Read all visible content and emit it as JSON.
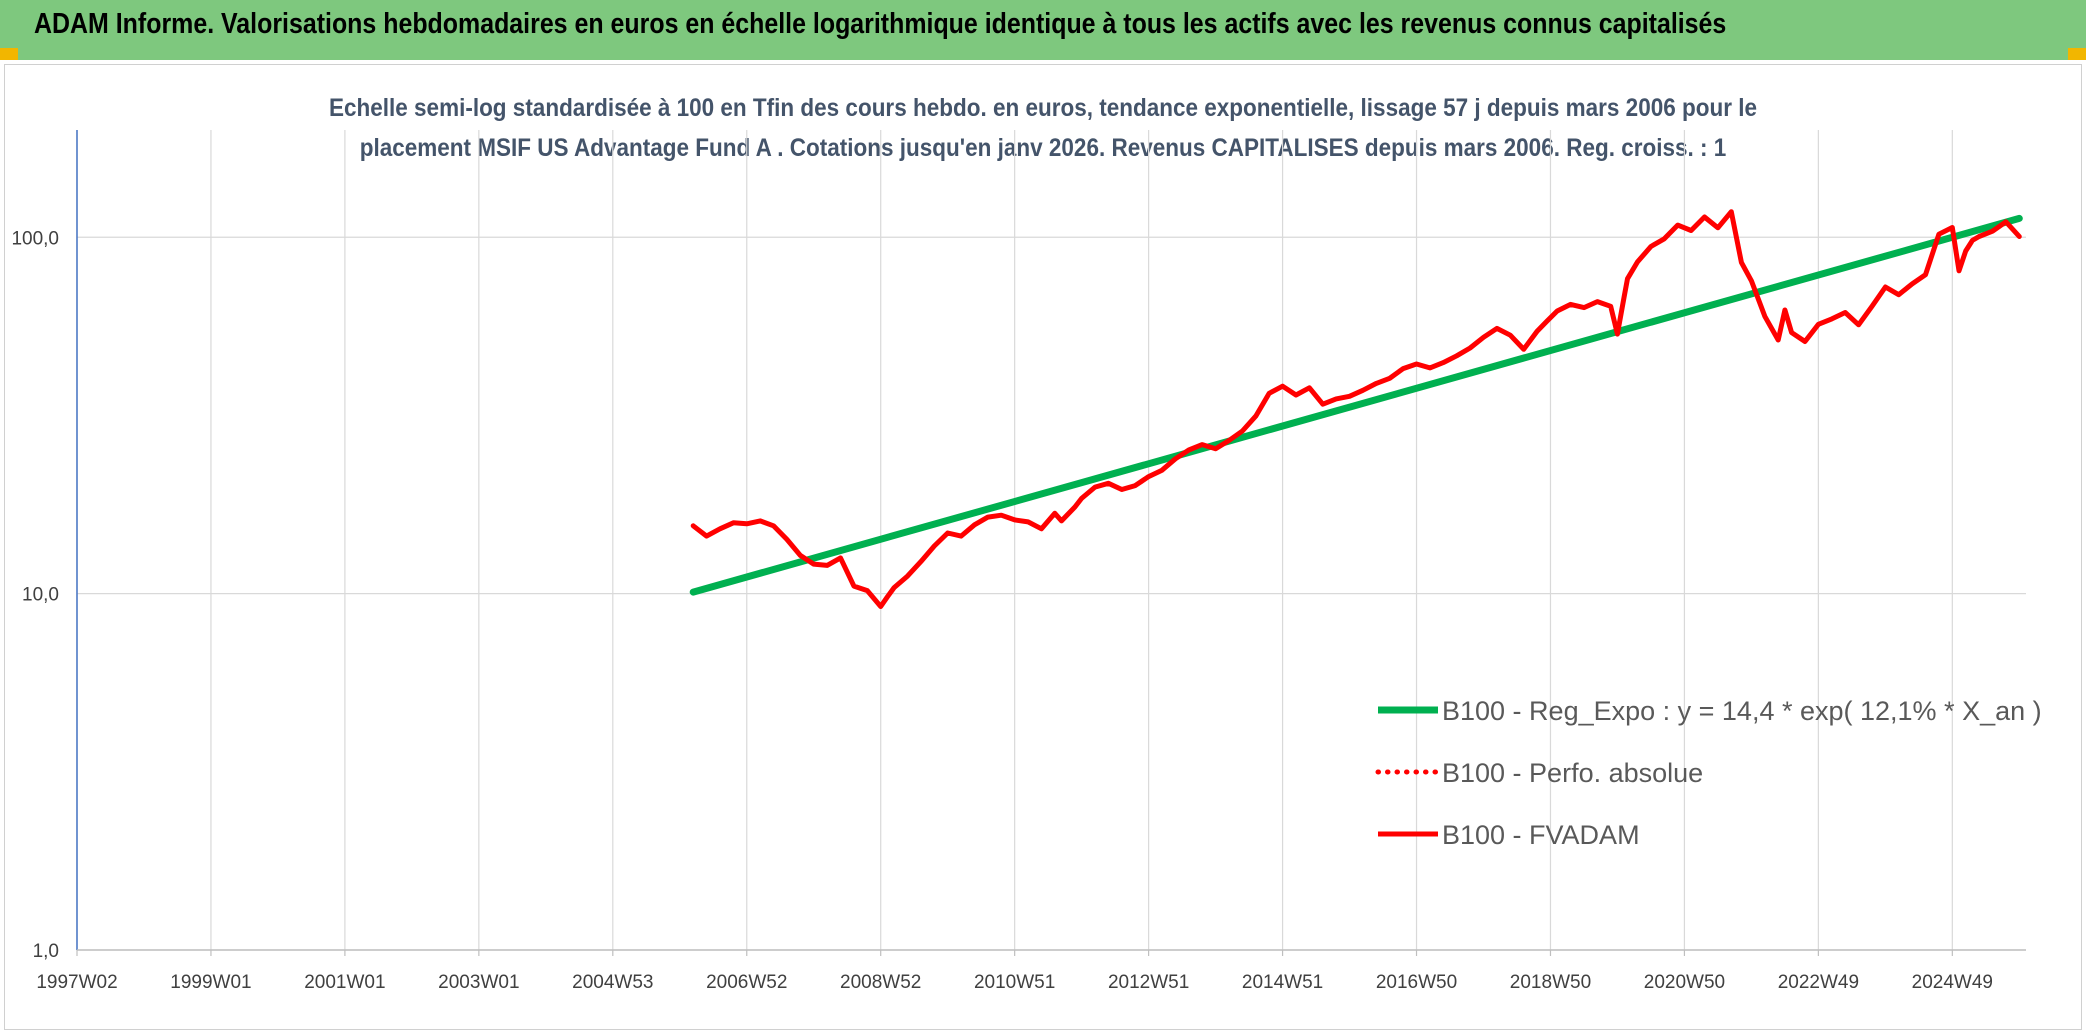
{
  "header": {
    "title": "ADAM Informe. Valorisations hebdomadaires en euros en échelle logarithmique identique à tous les actifs avec les revenus connus capitalisés"
  },
  "colors": {
    "header_bg": "#7ec87e",
    "regression": "#00b050",
    "fvadam": "#ff0000",
    "perfo": "#ff0000",
    "grid": "#d9d9d9",
    "title": "#44546a"
  },
  "chart_data": {
    "type": "line",
    "title": "",
    "subtitle_lines": [
      "Echelle semi-log standardisée à 100 en Tfin des cours hebdo. en euros, tendance exponentielle, lissage 57 j depuis mars 2006 pour le",
      "placement MSIF US Advantage Fund A . Cotations jusqu'en janv 2026. Revenus CAPITALISES depuis mars 2006. Reg. croiss. : 1"
    ],
    "y_scale": "log",
    "ylim": [
      1,
      200
    ],
    "y_ticks": [
      1,
      10,
      100
    ],
    "y_tick_labels": [
      "1,0",
      "10,0",
      "100,0"
    ],
    "xlim": [
      1997.0,
      2026.1
    ],
    "x_ticks": [
      1997.0,
      1999.0,
      2001.0,
      2003.0,
      2005.0,
      2007.0,
      2009.0,
      2011.0,
      2013.0,
      2015.0,
      2017.0,
      2019.0,
      2021.0,
      2023.0,
      2025.0
    ],
    "x_tick_labels": [
      "1997W02",
      "1999W01",
      "2001W01",
      "2003W01",
      "2004W53",
      "2006W52",
      "2008W52",
      "2010W51",
      "2012W51",
      "2014W51",
      "2016W50",
      "2018W50",
      "2020W50",
      "2022W49",
      "2024W49"
    ],
    "grid": true,
    "legend_position": "bottom-right",
    "series": [
      {
        "name": "B100 - Reg_Expo : y = 14,4 * exp( 12,1% *  X_an )",
        "style": "solid-thick",
        "x": [
          2006.2,
          2026.0
        ],
        "y": [
          10.1,
          113
        ]
      },
      {
        "name": "B100 - Perfo. absolue",
        "style": "dotted",
        "x": [],
        "y": []
      },
      {
        "name": "B100 - FVADAM",
        "style": "solid",
        "x": [
          2006.2,
          2006.4,
          2006.6,
          2006.8,
          2007.0,
          2007.2,
          2007.4,
          2007.6,
          2007.8,
          2008.0,
          2008.2,
          2008.4,
          2008.6,
          2008.8,
          2009.0,
          2009.1,
          2009.2,
          2009.4,
          2009.6,
          2009.8,
          2010.0,
          2010.2,
          2010.4,
          2010.6,
          2010.8,
          2011.0,
          2011.2,
          2011.4,
          2011.6,
          2011.7,
          2011.9,
          2012.0,
          2012.2,
          2012.4,
          2012.6,
          2012.8,
          2013.0,
          2013.2,
          2013.4,
          2013.6,
          2013.8,
          2014.0,
          2014.2,
          2014.4,
          2014.6,
          2014.8,
          2015.0,
          2015.2,
          2015.4,
          2015.6,
          2015.8,
          2016.0,
          2016.2,
          2016.4,
          2016.6,
          2016.8,
          2017.0,
          2017.2,
          2017.4,
          2017.6,
          2017.8,
          2018.0,
          2018.2,
          2018.4,
          2018.6,
          2018.8,
          2018.95,
          2019.1,
          2019.3,
          2019.5,
          2019.7,
          2019.9,
          2020.0,
          2020.1,
          2020.15,
          2020.3,
          2020.5,
          2020.7,
          2020.9,
          2021.1,
          2021.3,
          2021.5,
          2021.7,
          2021.85,
          2022.0,
          2022.2,
          2022.4,
          2022.5,
          2022.6,
          2022.8,
          2023.0,
          2023.2,
          2023.4,
          2023.6,
          2023.8,
          2024.0,
          2024.2,
          2024.4,
          2024.6,
          2024.8,
          2025.0,
          2025.1,
          2025.2,
          2025.3,
          2025.4,
          2025.6,
          2025.8,
          2026.0
        ],
        "y": [
          15.5,
          14.5,
          15.2,
          15.8,
          15.7,
          16.0,
          15.5,
          14.2,
          12.8,
          12.1,
          12.0,
          12.6,
          10.5,
          10.2,
          9.2,
          9.8,
          10.4,
          11.2,
          12.3,
          13.6,
          14.8,
          14.5,
          15.6,
          16.4,
          16.6,
          16.1,
          15.9,
          15.2,
          16.8,
          16.0,
          17.5,
          18.5,
          19.9,
          20.4,
          19.6,
          20.1,
          21.3,
          22.2,
          23.9,
          25.3,
          26.2,
          25.5,
          26.9,
          28.6,
          31.5,
          36.5,
          38.2,
          36.1,
          37.8,
          34.0,
          35.2,
          35.8,
          37.2,
          38.9,
          40.2,
          42.8,
          44.1,
          43.0,
          44.5,
          46.5,
          48.9,
          52.4,
          55.5,
          53.1,
          48.5,
          54.5,
          58.2,
          62.1,
          64.8,
          63.5,
          66.0,
          64.0,
          53.5,
          68.0,
          76.5,
          85.3,
          94.2,
          99.0,
          108.2,
          104.5,
          114.0,
          106.3,
          118.0,
          85.0,
          75.5,
          60.0,
          51.5,
          62.5,
          54.0,
          51.0,
          57.0,
          59.0,
          61.5,
          56.8,
          64.0,
          72.5,
          69.0,
          74.0,
          78.5,
          102.0,
          106.5,
          80.5,
          91.5,
          98.0,
          100.5,
          104.0,
          110.5,
          100.5
        ]
      }
    ]
  }
}
